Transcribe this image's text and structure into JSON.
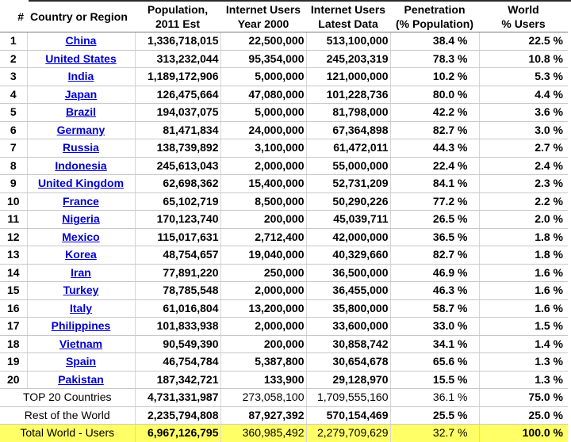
{
  "header": {
    "rank": "#",
    "country": "Country or Region",
    "population": [
      "Population,",
      "2011 Est"
    ],
    "users_2000": [
      "Internet Users",
      "Year 2000"
    ],
    "users_latest": [
      "Internet Users",
      "Latest Data"
    ],
    "penetration": [
      "Penetration",
      "(% Population)"
    ],
    "share": [
      "World",
      "% Users"
    ]
  },
  "rows": [
    {
      "rank": "1",
      "country": "China",
      "population": "1,336,718,015",
      "users_2000": "22,500,000",
      "users_latest": "513,100,000",
      "penetration": "38.4 %",
      "share": "22.5 %"
    },
    {
      "rank": "2",
      "country": "United States",
      "population": "313,232,044",
      "users_2000": "95,354,000",
      "users_latest": "245,203,319",
      "penetration": "78.3 %",
      "share": "10.8 %"
    },
    {
      "rank": "3",
      "country": "India",
      "population": "1,189,172,906",
      "users_2000": "5,000,000",
      "users_latest": "121,000,000",
      "penetration": "10.2 %",
      "share": "5.3 %"
    },
    {
      "rank": "4",
      "country": "Japan",
      "population": "126,475,664",
      "users_2000": "47,080,000",
      "users_latest": "101,228,736",
      "penetration": "80.0 %",
      "share": "4.4 %"
    },
    {
      "rank": "5",
      "country": "Brazil",
      "population": "194,037,075",
      "users_2000": "5,000,000",
      "users_latest": "81,798,000",
      "penetration": "42.2 %",
      "share": "3.6 %"
    },
    {
      "rank": "6",
      "country": "Germany",
      "population": "81,471,834",
      "users_2000": "24,000,000",
      "users_latest": "67,364,898",
      "penetration": "82.7 %",
      "share": "3.0 %"
    },
    {
      "rank": "7",
      "country": "Russia",
      "population": "138,739,892",
      "users_2000": "3,100,000",
      "users_latest": "61,472,011",
      "penetration": "44.3 %",
      "share": "2.7 %"
    },
    {
      "rank": "8",
      "country": "Indonesia",
      "population": "245,613,043",
      "users_2000": "2,000,000",
      "users_latest": "55,000,000",
      "penetration": "22.4 %",
      "share": "2.4 %"
    },
    {
      "rank": "9",
      "country": "United Kingdom",
      "population": "62,698,362",
      "users_2000": "15,400,000",
      "users_latest": "52,731,209",
      "penetration": "84.1 %",
      "share": "2.3 %"
    },
    {
      "rank": "10",
      "country": "France",
      "population": "65,102,719",
      "users_2000": "8,500,000",
      "users_latest": "50,290,226",
      "penetration": "77.2 %",
      "share": "2.2 %"
    },
    {
      "rank": "11",
      "country": "Nigeria",
      "population": "170,123,740",
      "users_2000": "200,000",
      "users_latest": "45,039,711",
      "penetration": "26.5 %",
      "share": "2.0 %"
    },
    {
      "rank": "12",
      "country": "Mexico",
      "population": "115,017,631",
      "users_2000": "2,712,400",
      "users_latest": "42,000,000",
      "penetration": "36.5 %",
      "share": "1.8 %"
    },
    {
      "rank": "13",
      "country": "Korea",
      "population": "48,754,657",
      "users_2000": "19,040,000",
      "users_latest": "40,329,660",
      "penetration": "82.7 %",
      "share": "1.8 %"
    },
    {
      "rank": "14",
      "country": "Iran",
      "population": "77,891,220",
      "users_2000": "250,000",
      "users_latest": "36,500,000",
      "penetration": "46.9 %",
      "share": "1.6 %"
    },
    {
      "rank": "15",
      "country": "Turkey",
      "population": "78,785,548",
      "users_2000": "2,000,000",
      "users_latest": "36,455,000",
      "penetration": "46.3 %",
      "share": "1.6 %"
    },
    {
      "rank": "16",
      "country": "Italy",
      "population": "61,016,804",
      "users_2000": "13,200,000",
      "users_latest": "35,800,000",
      "penetration": "58.7 %",
      "share": "1.6 %"
    },
    {
      "rank": "17",
      "country": "Philippines",
      "population": "101,833,938",
      "users_2000": "2,000,000",
      "users_latest": "33,600,000",
      "penetration": "33.0 %",
      "share": "1.5 %"
    },
    {
      "rank": "18",
      "country": "Vietnam",
      "population": "90,549,390",
      "users_2000": "200,000",
      "users_latest": "30,858,742",
      "penetration": "34.1 %",
      "share": "1.4 %"
    },
    {
      "rank": "19",
      "country": "Spain",
      "population": "46,754,784",
      "users_2000": "5,387,800",
      "users_latest": "30,654,678",
      "penetration": "65.6 %",
      "share": "1.3 %"
    },
    {
      "rank": "20",
      "country": "Pakistan",
      "population": "187,342,721",
      "users_2000": "133,900",
      "users_latest": "29,128,970",
      "penetration": "15.5 %",
      "share": "1.3 %"
    }
  ],
  "summary": {
    "top20": {
      "label": "TOP 20 Countries",
      "population": "4,731,331,987",
      "users_2000": "273,058,100",
      "users_latest": "1,709,555,160",
      "penetration": "36.1 %",
      "share": "75.0 %"
    },
    "rest": {
      "label": "Rest of the World",
      "population": "2,235,794,808",
      "users_2000": "87,927,392",
      "users_latest": "570,154,469",
      "penetration": "25.5 %",
      "share": "25.0 %"
    },
    "total": {
      "label": "Total World - Users",
      "population": "6,967,126,795",
      "users_2000": "360,985,492",
      "users_latest": "2,279,709,629",
      "penetration": "32.7 %",
      "share": "100.0 %"
    }
  },
  "colors": {
    "link": "#0000cc",
    "total_highlight": "#ffff66"
  }
}
